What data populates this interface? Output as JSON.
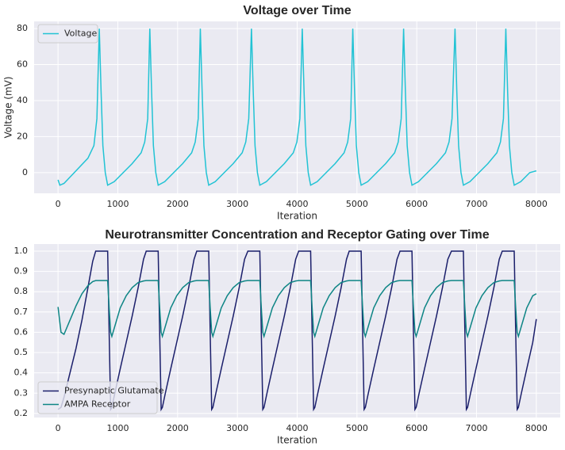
{
  "chart_data": [
    {
      "type": "line",
      "title": "Voltage over Time",
      "xlabel": "Iteration",
      "ylabel": "Voltage (mV)",
      "x": [
        0,
        30,
        100,
        300,
        500,
        600,
        650,
        690,
        720,
        750,
        790,
        830,
        940,
        1090,
        1240,
        1390,
        1450,
        1500,
        1535,
        1565,
        1595,
        1635,
        1675,
        1785,
        1935,
        2085,
        2235,
        2295,
        2345,
        2380,
        2410,
        2440,
        2480,
        2520,
        2630,
        2780,
        2930,
        3080,
        3140,
        3190,
        3235,
        3265,
        3295,
        3335,
        3375,
        3485,
        3635,
        3785,
        3935,
        3995,
        4045,
        4085,
        4115,
        4145,
        4185,
        4225,
        4335,
        4485,
        4635,
        4785,
        4845,
        4895,
        4930,
        4960,
        4990,
        5030,
        5070,
        5180,
        5330,
        5480,
        5630,
        5690,
        5740,
        5780,
        5810,
        5840,
        5880,
        5920,
        6030,
        6180,
        6330,
        6480,
        6540,
        6590,
        6640,
        6670,
        6700,
        6740,
        6780,
        6890,
        7040,
        7190,
        7340,
        7400,
        7450,
        7490,
        7520,
        7550,
        7590,
        7630,
        7740,
        7890,
        8000
      ],
      "series": [
        {
          "name": "Voltage",
          "color": "#22c3d4",
          "values": [
            -4,
            -7,
            -6,
            1,
            8,
            15,
            30,
            80,
            45,
            15,
            0,
            -7,
            -5,
            0,
            5,
            11,
            17,
            30,
            80,
            45,
            15,
            0,
            -7,
            -5,
            0,
            5,
            11,
            17,
            30,
            80,
            45,
            15,
            0,
            -7,
            -5,
            0,
            5,
            11,
            17,
            30,
            80,
            45,
            15,
            0,
            -7,
            -5,
            0,
            5,
            11,
            17,
            30,
            80,
            45,
            15,
            0,
            -7,
            -5,
            0,
            5,
            11,
            17,
            30,
            80,
            45,
            15,
            0,
            -7,
            -5,
            0,
            5,
            11,
            17,
            30,
            80,
            45,
            15,
            0,
            -7,
            -5,
            0,
            5,
            11,
            17,
            30,
            80,
            45,
            15,
            0,
            -7,
            -5,
            0,
            5,
            11,
            17,
            30,
            80,
            45,
            15,
            0,
            -7,
            -5,
            0,
            1
          ]
        }
      ],
      "xlim": [
        -400,
        8400
      ],
      "ylim": [
        -11.5,
        84
      ],
      "xticks": [
        0,
        1000,
        2000,
        3000,
        4000,
        5000,
        6000,
        7000,
        8000
      ],
      "yticks": [
        0,
        20,
        40,
        60,
        80
      ],
      "grid": true,
      "legend": "upper-left"
    },
    {
      "type": "line",
      "title": "Neurotransmitter Concentration and Receptor Gating over Time",
      "xlabel": "Iteration",
      "x": [
        0,
        50,
        100,
        200,
        300,
        400,
        500,
        580,
        630,
        830,
        855,
        880,
        900,
        950,
        1040,
        1140,
        1240,
        1340,
        1430,
        1475,
        1675,
        1700,
        1725,
        1745,
        1795,
        1885,
        1985,
        2085,
        2185,
        2275,
        2320,
        2520,
        2545,
        2570,
        2590,
        2640,
        2730,
        2830,
        2930,
        3030,
        3120,
        3175,
        3375,
        3400,
        3425,
        3445,
        3495,
        3585,
        3685,
        3785,
        3885,
        3975,
        4025,
        4225,
        4250,
        4275,
        4295,
        4345,
        4435,
        4535,
        4635,
        4735,
        4825,
        4870,
        5070,
        5095,
        5120,
        5140,
        5190,
        5280,
        5380,
        5480,
        5580,
        5670,
        5720,
        5920,
        5945,
        5970,
        5990,
        6040,
        6130,
        6230,
        6330,
        6430,
        6520,
        6580,
        6780,
        6805,
        6830,
        6850,
        6900,
        6990,
        7090,
        7190,
        7290,
        7380,
        7430,
        7630,
        7655,
        7680,
        7700,
        7750,
        7840,
        7940,
        8000
      ],
      "series": [
        {
          "name": "Presynaptic Glutamate",
          "color": "#1b1f6b",
          "values": [
            0.22,
            0.23,
            0.28,
            0.4,
            0.52,
            0.66,
            0.82,
            0.95,
            1,
            1,
            0.6,
            0.22,
            0.23,
            0.3,
            0.42,
            0.55,
            0.68,
            0.82,
            0.96,
            1,
            1,
            0.6,
            0.22,
            0.23,
            0.3,
            0.42,
            0.55,
            0.68,
            0.82,
            0.96,
            1,
            1,
            0.6,
            0.22,
            0.23,
            0.3,
            0.42,
            0.55,
            0.68,
            0.82,
            0.96,
            1,
            1,
            0.6,
            0.22,
            0.23,
            0.3,
            0.42,
            0.55,
            0.68,
            0.82,
            0.96,
            1,
            1,
            0.6,
            0.22,
            0.23,
            0.3,
            0.42,
            0.55,
            0.68,
            0.82,
            0.96,
            1,
            1,
            0.6,
            0.22,
            0.23,
            0.3,
            0.42,
            0.55,
            0.68,
            0.82,
            0.96,
            1,
            1,
            0.6,
            0.22,
            0.23,
            0.3,
            0.42,
            0.55,
            0.68,
            0.82,
            0.96,
            1,
            1,
            0.6,
            0.22,
            0.23,
            0.3,
            0.42,
            0.55,
            0.68,
            0.82,
            0.96,
            1,
            1,
            0.6,
            0.22,
            0.23,
            0.3,
            0.42,
            0.55,
            0.665
          ]
        },
        {
          "name": "AMPA Receptor",
          "color": "#0e8585",
          "values": [
            0.725,
            0.6,
            0.59,
            0.66,
            0.73,
            0.79,
            0.83,
            0.85,
            0.855,
            0.855,
            0.72,
            0.6,
            0.58,
            0.63,
            0.72,
            0.78,
            0.82,
            0.845,
            0.853,
            0.855,
            0.855,
            0.72,
            0.6,
            0.58,
            0.63,
            0.72,
            0.78,
            0.82,
            0.845,
            0.853,
            0.855,
            0.855,
            0.72,
            0.6,
            0.58,
            0.63,
            0.72,
            0.78,
            0.82,
            0.845,
            0.853,
            0.855,
            0.855,
            0.72,
            0.6,
            0.58,
            0.63,
            0.72,
            0.78,
            0.82,
            0.845,
            0.853,
            0.855,
            0.855,
            0.72,
            0.6,
            0.58,
            0.63,
            0.72,
            0.78,
            0.82,
            0.845,
            0.853,
            0.855,
            0.855,
            0.72,
            0.6,
            0.58,
            0.63,
            0.72,
            0.78,
            0.82,
            0.845,
            0.853,
            0.855,
            0.855,
            0.72,
            0.6,
            0.58,
            0.63,
            0.72,
            0.78,
            0.82,
            0.845,
            0.853,
            0.855,
            0.855,
            0.72,
            0.6,
            0.58,
            0.63,
            0.72,
            0.78,
            0.82,
            0.845,
            0.853,
            0.855,
            0.855,
            0.72,
            0.6,
            0.58,
            0.63,
            0.72,
            0.78,
            0.79
          ]
        }
      ],
      "xlim": [
        -400,
        8400
      ],
      "ylim": [
        0.18,
        1.035
      ],
      "xticks": [
        0,
        1000,
        2000,
        3000,
        4000,
        5000,
        6000,
        7000,
        8000
      ],
      "yticks": [
        0.2,
        0.3,
        0.4,
        0.5,
        0.6,
        0.7,
        0.8,
        0.9,
        {
          "value": 1,
          "label": "1.0"
        }
      ],
      "grid": true,
      "legend": "lower-left"
    }
  ]
}
